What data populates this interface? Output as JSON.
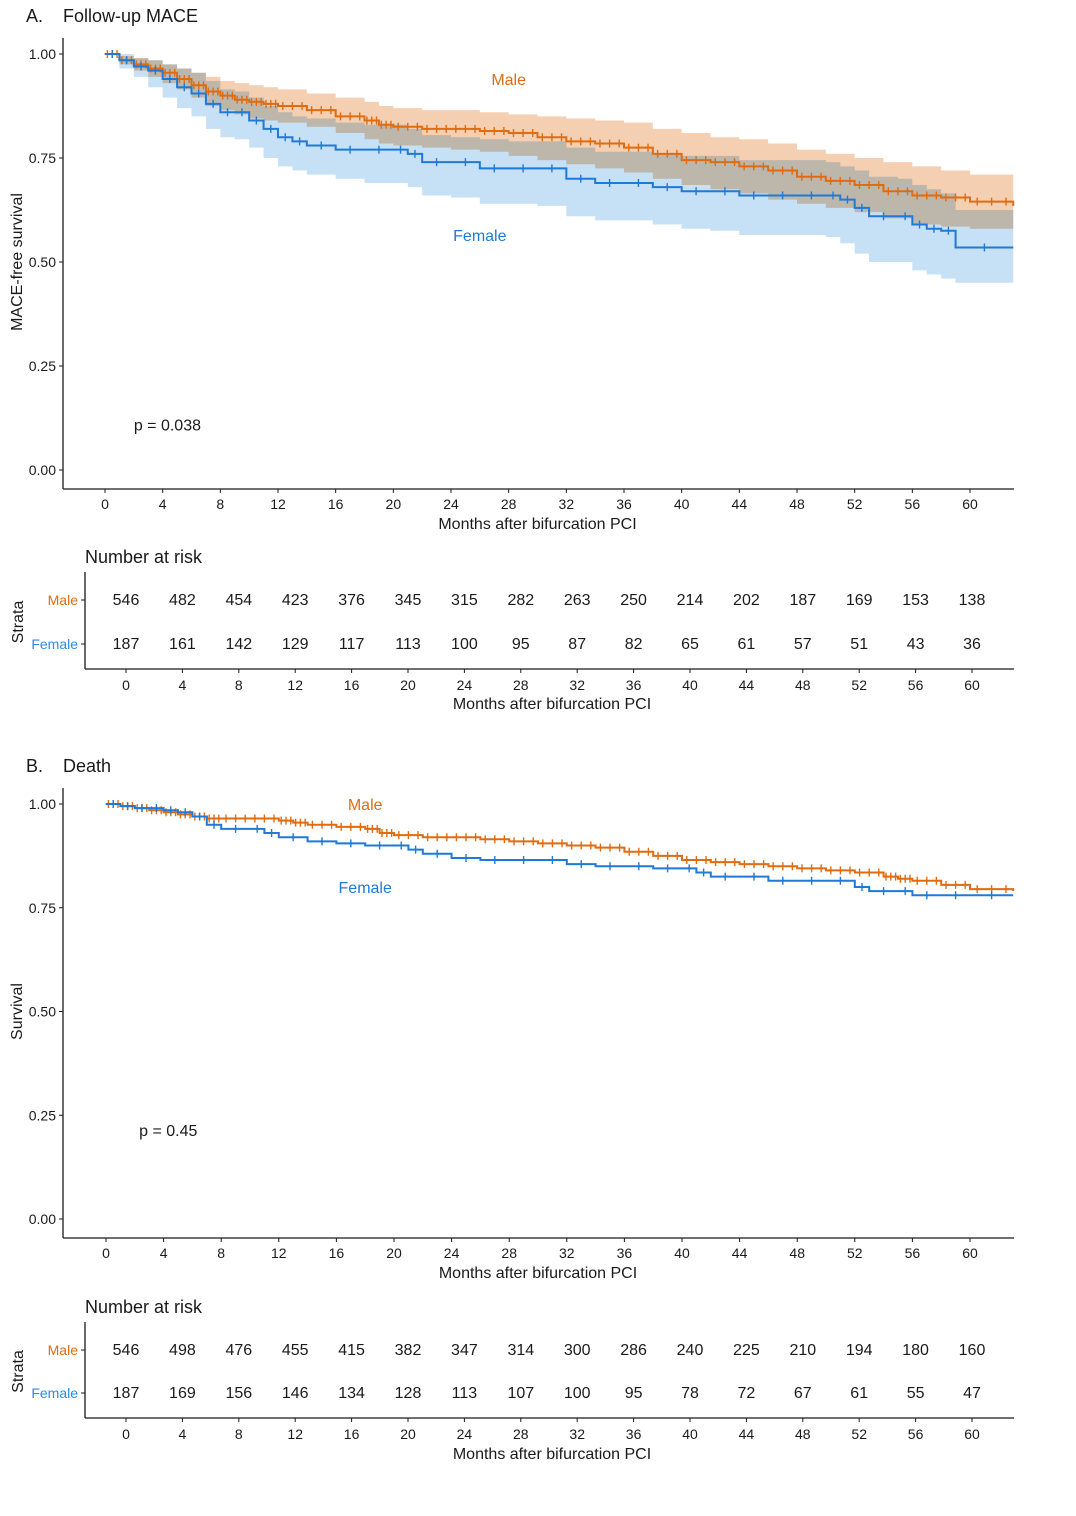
{
  "colors": {
    "male": "#e06c12",
    "female": "#1f7ad6",
    "male_ci": "#f2c7a4",
    "female_ci": "#b3d6f2",
    "overlap_ci": "#aab3bb",
    "axis": "#1a1a1a"
  },
  "chart_data": [
    {
      "type": "line",
      "subtype": "kaplan-meier",
      "panel_letter": "A.",
      "title": "Follow-up MACE",
      "xlabel": "Months after bifurcation PCI",
      "ylabel": "MACE-free survival",
      "xlim": [
        -3,
        63.5
      ],
      "ylim": [
        -0.045,
        1.035
      ],
      "xticks": [
        0,
        4,
        8,
        12,
        16,
        20,
        24,
        28,
        32,
        36,
        40,
        44,
        48,
        52,
        56,
        60
      ],
      "yticks": [
        "0.00",
        "0.25",
        "0.50",
        "0.75",
        "1.00"
      ],
      "grid": false,
      "pvalue_label": "p = 0.038",
      "pvalue_pos": {
        "x": 2,
        "y": 0.095
      },
      "confidence_bands": true,
      "series": [
        {
          "name": "Male",
          "label_pos": {
            "x": 28,
            "y": 0.925
          },
          "x": [
            0,
            1,
            2,
            3,
            4,
            5,
            6,
            7,
            8,
            9,
            10,
            11,
            12,
            14,
            16,
            18,
            19,
            20,
            22,
            24,
            26,
            28,
            30,
            32,
            34,
            36,
            38,
            40,
            42,
            44,
            46,
            48,
            50,
            52,
            54,
            56,
            58,
            60,
            63
          ],
          "y": [
            1.0,
            0.985,
            0.975,
            0.965,
            0.955,
            0.94,
            0.925,
            0.91,
            0.9,
            0.89,
            0.885,
            0.88,
            0.875,
            0.865,
            0.85,
            0.84,
            0.83,
            0.825,
            0.82,
            0.82,
            0.815,
            0.81,
            0.8,
            0.79,
            0.785,
            0.775,
            0.76,
            0.745,
            0.74,
            0.73,
            0.72,
            0.705,
            0.695,
            0.685,
            0.67,
            0.66,
            0.655,
            0.645,
            0.635
          ],
          "lower": [
            1.0,
            0.975,
            0.96,
            0.945,
            0.93,
            0.915,
            0.895,
            0.875,
            0.865,
            0.855,
            0.845,
            0.84,
            0.835,
            0.825,
            0.81,
            0.795,
            0.785,
            0.78,
            0.775,
            0.77,
            0.765,
            0.755,
            0.745,
            0.735,
            0.725,
            0.715,
            0.7,
            0.685,
            0.675,
            0.665,
            0.65,
            0.64,
            0.63,
            0.62,
            0.605,
            0.59,
            0.585,
            0.58,
            0.57
          ],
          "upper": [
            1.0,
            0.995,
            0.99,
            0.985,
            0.975,
            0.965,
            0.955,
            0.945,
            0.935,
            0.93,
            0.925,
            0.92,
            0.915,
            0.905,
            0.895,
            0.885,
            0.875,
            0.87,
            0.865,
            0.865,
            0.86,
            0.855,
            0.85,
            0.845,
            0.84,
            0.835,
            0.82,
            0.81,
            0.8,
            0.795,
            0.785,
            0.77,
            0.76,
            0.75,
            0.74,
            0.73,
            0.72,
            0.71,
            0.695
          ]
        },
        {
          "name": "Female",
          "label_pos": {
            "x": 26,
            "y": 0.55
          },
          "x": [
            0,
            1,
            2,
            3,
            4,
            5,
            6,
            7,
            8,
            9,
            10,
            11,
            12,
            13,
            14,
            16,
            18,
            20,
            21,
            22,
            24,
            26,
            28,
            30,
            32,
            34,
            36,
            38,
            40,
            42,
            44,
            46,
            48,
            50,
            51,
            52,
            53,
            55,
            56,
            57,
            58,
            59,
            63
          ],
          "y": [
            1.0,
            0.985,
            0.97,
            0.96,
            0.94,
            0.92,
            0.905,
            0.88,
            0.86,
            0.86,
            0.84,
            0.82,
            0.8,
            0.79,
            0.78,
            0.77,
            0.77,
            0.77,
            0.76,
            0.74,
            0.74,
            0.725,
            0.725,
            0.725,
            0.7,
            0.69,
            0.69,
            0.68,
            0.67,
            0.67,
            0.66,
            0.66,
            0.66,
            0.66,
            0.65,
            0.63,
            0.61,
            0.61,
            0.59,
            0.58,
            0.575,
            0.535,
            0.535
          ],
          "lower": [
            1.0,
            0.965,
            0.945,
            0.92,
            0.895,
            0.87,
            0.85,
            0.82,
            0.8,
            0.795,
            0.775,
            0.75,
            0.73,
            0.72,
            0.71,
            0.7,
            0.69,
            0.69,
            0.68,
            0.66,
            0.655,
            0.64,
            0.64,
            0.635,
            0.61,
            0.6,
            0.6,
            0.59,
            0.58,
            0.575,
            0.565,
            0.565,
            0.565,
            0.56,
            0.545,
            0.52,
            0.5,
            0.5,
            0.48,
            0.47,
            0.46,
            0.45,
            0.45
          ],
          "upper": [
            1.0,
            1.0,
            0.99,
            0.985,
            0.975,
            0.965,
            0.955,
            0.935,
            0.915,
            0.91,
            0.895,
            0.875,
            0.86,
            0.85,
            0.845,
            0.835,
            0.83,
            0.83,
            0.82,
            0.805,
            0.8,
            0.795,
            0.79,
            0.79,
            0.775,
            0.765,
            0.765,
            0.76,
            0.755,
            0.755,
            0.745,
            0.745,
            0.745,
            0.74,
            0.73,
            0.72,
            0.705,
            0.7,
            0.685,
            0.675,
            0.665,
            0.625,
            0.625
          ]
        }
      ],
      "risk_table": {
        "title": "Number at risk",
        "ylabel": "Strata",
        "xlabel": "Months after bifurcation PCI",
        "times": [
          0,
          4,
          8,
          12,
          16,
          20,
          24,
          28,
          32,
          36,
          40,
          44,
          48,
          52,
          56,
          60
        ],
        "rows": [
          {
            "name": "Male",
            "values": [
              546,
              482,
              454,
              423,
              376,
              345,
              315,
              282,
              263,
              250,
              214,
              202,
              187,
              169,
              153,
              138
            ]
          },
          {
            "name": "Female",
            "values": [
              187,
              161,
              142,
              129,
              117,
              113,
              100,
              95,
              87,
              82,
              65,
              61,
              57,
              51,
              43,
              36
            ]
          }
        ]
      }
    },
    {
      "type": "line",
      "subtype": "kaplan-meier",
      "panel_letter": "B.",
      "title": "Death",
      "xlabel": "Months after bifurcation PCI",
      "ylabel": "Survival",
      "xlim": [
        -3,
        63.5
      ],
      "ylim": [
        -0.045,
        1.035
      ],
      "xticks": [
        0,
        4,
        8,
        12,
        16,
        20,
        24,
        28,
        32,
        36,
        40,
        44,
        48,
        52,
        56,
        60
      ],
      "yticks": [
        "0.00",
        "0.25",
        "0.50",
        "0.75",
        "1.00"
      ],
      "grid": false,
      "pvalue_label": "p = 0.45",
      "pvalue_pos": {
        "x": 2.3,
        "y": 0.2
      },
      "confidence_bands": false,
      "series": [
        {
          "name": "Male",
          "label_pos": {
            "x": 18,
            "y": 0.985
          },
          "x": [
            0,
            1,
            2,
            3,
            4,
            5,
            6,
            7,
            8,
            10,
            12,
            13,
            14,
            16,
            18,
            19,
            20,
            22,
            24,
            26,
            28,
            30,
            32,
            34,
            36,
            38,
            40,
            42,
            44,
            46,
            48,
            50,
            52,
            54,
            55,
            56,
            58,
            60,
            63
          ],
          "y": [
            1.0,
            0.995,
            0.99,
            0.985,
            0.98,
            0.975,
            0.97,
            0.965,
            0.965,
            0.965,
            0.96,
            0.955,
            0.95,
            0.945,
            0.94,
            0.93,
            0.925,
            0.92,
            0.92,
            0.915,
            0.91,
            0.905,
            0.9,
            0.895,
            0.885,
            0.875,
            0.865,
            0.86,
            0.855,
            0.85,
            0.845,
            0.84,
            0.835,
            0.825,
            0.82,
            0.815,
            0.805,
            0.795,
            0.79
          ]
        },
        {
          "name": "Female",
          "label_pos": {
            "x": 18,
            "y": 0.785
          },
          "x": [
            0,
            1,
            2,
            3,
            4,
            5,
            6,
            7,
            8,
            10,
            11,
            12,
            14,
            16,
            18,
            20,
            21,
            22,
            24,
            26,
            28,
            30,
            32,
            34,
            36,
            38,
            40,
            41,
            42,
            44,
            46,
            48,
            50,
            52,
            53,
            55,
            56,
            58,
            60,
            63
          ],
          "y": [
            1.0,
            0.995,
            0.99,
            0.99,
            0.985,
            0.98,
            0.97,
            0.95,
            0.94,
            0.94,
            0.93,
            0.92,
            0.91,
            0.905,
            0.9,
            0.9,
            0.89,
            0.88,
            0.87,
            0.865,
            0.865,
            0.865,
            0.855,
            0.85,
            0.85,
            0.845,
            0.845,
            0.835,
            0.825,
            0.825,
            0.815,
            0.815,
            0.815,
            0.8,
            0.79,
            0.79,
            0.78,
            0.78,
            0.78,
            0.78
          ]
        }
      ],
      "risk_table": {
        "title": "Number at risk",
        "ylabel": "Strata",
        "xlabel": "Months after bifurcation PCI",
        "times": [
          0,
          4,
          8,
          12,
          16,
          20,
          24,
          28,
          32,
          36,
          40,
          44,
          48,
          52,
          56,
          60
        ],
        "rows": [
          {
            "name": "Male",
            "values": [
              546,
              498,
              476,
              455,
              415,
              382,
              347,
              314,
              300,
              286,
              240,
              225,
              210,
              194,
              180,
              160
            ]
          },
          {
            "name": "Female",
            "values": [
              187,
              169,
              156,
              146,
              134,
              128,
              113,
              107,
              100,
              95,
              78,
              72,
              67,
              61,
              55,
              47
            ]
          }
        ]
      }
    }
  ]
}
